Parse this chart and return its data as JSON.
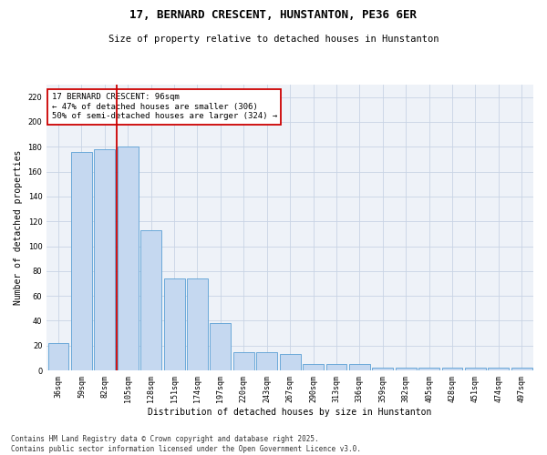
{
  "title_line1": "17, BERNARD CRESCENT, HUNSTANTON, PE36 6ER",
  "title_line2": "Size of property relative to detached houses in Hunstanton",
  "xlabel": "Distribution of detached houses by size in Hunstanton",
  "ylabel": "Number of detached properties",
  "categories": [
    "36sqm",
    "59sqm",
    "82sqm",
    "105sqm",
    "128sqm",
    "151sqm",
    "174sqm",
    "197sqm",
    "220sqm",
    "243sqm",
    "267sqm",
    "290sqm",
    "313sqm",
    "336sqm",
    "359sqm",
    "382sqm",
    "405sqm",
    "428sqm",
    "451sqm",
    "474sqm",
    "497sqm"
  ],
  "values": [
    22,
    176,
    178,
    180,
    113,
    74,
    74,
    38,
    15,
    15,
    13,
    5,
    5,
    5,
    2,
    2,
    2,
    2,
    2,
    2,
    2
  ],
  "bar_color": "#c5d8f0",
  "bar_edge_color": "#5a9fd4",
  "vline_color": "#cc0000",
  "vline_pos": 2.5,
  "annotation_line1": "17 BERNARD CRESCENT: 96sqm",
  "annotation_line2": "← 47% of detached houses are smaller (306)",
  "annotation_line3": "50% of semi-detached houses are larger (324) →",
  "annotation_box_color": "#cc0000",
  "ylim": [
    0,
    230
  ],
  "yticks": [
    0,
    20,
    40,
    60,
    80,
    100,
    120,
    140,
    160,
    180,
    200,
    220
  ],
  "grid_color": "#c8d4e4",
  "bg_color": "#eef2f8",
  "footnote": "Contains HM Land Registry data © Crown copyright and database right 2025.\nContains public sector information licensed under the Open Government Licence v3.0.",
  "title_fontsize": 9,
  "subtitle_fontsize": 7.5,
  "annotation_fontsize": 6.5,
  "tick_fontsize": 6,
  "label_fontsize": 7
}
